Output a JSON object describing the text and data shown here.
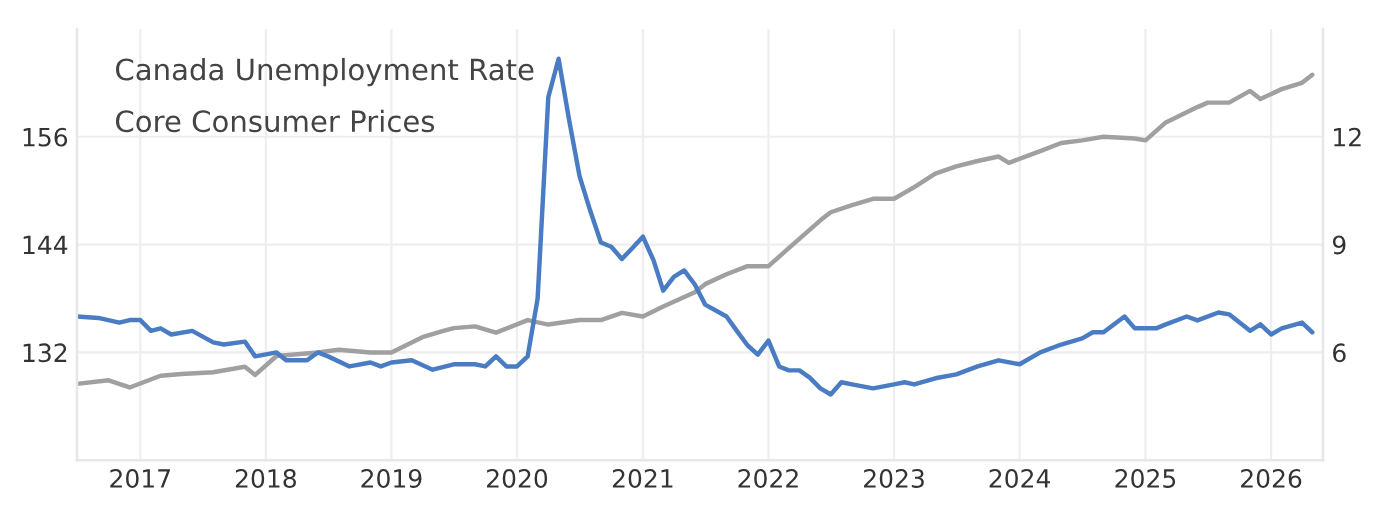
{
  "chart_data": {
    "type": "line",
    "annotations": [
      "Canada Unemployment Rate",
      "Core Consumer Prices"
    ],
    "xlim": [
      "2016-07",
      "2026-06"
    ],
    "xticks": [
      {
        "value": "2017",
        "label": "2017"
      },
      {
        "value": "2018",
        "label": "2018"
      },
      {
        "value": "2019",
        "label": "2019"
      },
      {
        "value": "2020",
        "label": "2020"
      },
      {
        "value": "2021",
        "label": "2021"
      },
      {
        "value": "2022",
        "label": "2022"
      },
      {
        "value": "2023",
        "label": "2023"
      },
      {
        "value": "2024",
        "label": "2024"
      },
      {
        "value": "2025",
        "label": "2025"
      },
      {
        "value": "2026",
        "label": "2026"
      }
    ],
    "ylim": [
      120,
      168
    ],
    "yticks": [
      132,
      144,
      156
    ],
    "y2lim": [
      3,
      15
    ],
    "y2ticks": [
      6,
      9,
      12
    ],
    "grid": true,
    "marker": "none",
    "line_style": "solid",
    "series": [
      {
        "color": "#a0a0a0",
        "x": [
          "2016-07",
          "2016-10",
          "2016-12",
          "2017-03",
          "2017-05",
          "2017-08",
          "2017-11",
          "2017-12",
          "2018-02",
          "2018-06",
          "2018-08",
          "2018-11",
          "2019-01",
          "2019-04",
          "2019-06",
          "2019-07",
          "2019-09",
          "2019-11",
          "2020-02",
          "2020-04",
          "2020-07",
          "2020-09",
          "2020-11",
          "2021-01",
          "2021-03",
          "2021-06",
          "2021-07",
          "2021-09",
          "2021-11",
          "2022-01",
          "2022-03",
          "2022-06",
          "2022-07",
          "2022-09",
          "2022-11",
          "2023-01",
          "2023-03",
          "2023-05",
          "2023-07",
          "2023-09",
          "2023-11",
          "2023-12",
          "2024-03",
          "2024-05",
          "2024-07",
          "2024-09",
          "2024-12",
          "2025-01",
          "2025-03",
          "2025-06",
          "2025-07",
          "2025-09",
          "2025-11",
          "2025-12",
          "2026-02",
          "2026-04",
          "2026-05"
        ],
        "values": [
          128.5,
          128.9,
          128.1,
          129.4,
          129.6,
          129.8,
          130.4,
          129.5,
          131.6,
          132.0,
          132.3,
          132.0,
          132.0,
          133.7,
          134.4,
          134.7,
          134.9,
          134.2,
          135.6,
          135.1,
          135.6,
          135.6,
          136.4,
          136.0,
          137.1,
          138.7,
          139.6,
          140.7,
          141.6,
          141.6,
          143.6,
          146.7,
          147.6,
          148.4,
          149.1,
          149.1,
          150.4,
          151.9,
          152.7,
          153.3,
          153.8,
          153.1,
          154.4,
          155.3,
          155.6,
          156.0,
          155.8,
          155.6,
          157.6,
          159.3,
          159.8,
          159.8,
          161.1,
          160.2,
          161.3,
          162.0,
          162.9
        ]
      },
      {
        "color": "#4a7cc4",
        "axis": "y2",
        "x": [
          "2016-07",
          "2016-09",
          "2016-11",
          "2016-12",
          "2017-01",
          "2017-02",
          "2017-03",
          "2017-04",
          "2017-06",
          "2017-08",
          "2017-09",
          "2017-11",
          "2017-12",
          "2018-02",
          "2018-03",
          "2018-05",
          "2018-06",
          "2018-07",
          "2018-09",
          "2018-11",
          "2018-12",
          "2019-01",
          "2019-03",
          "2019-05",
          "2019-07",
          "2019-09",
          "2019-10",
          "2019-11",
          "2019-12",
          "2020-01",
          "2020-02",
          "2020-03",
          "2020-04",
          "2020-05",
          "2020-06",
          "2020-07",
          "2020-08",
          "2020-09",
          "2020-10",
          "2020-11",
          "2020-12",
          "2021-01",
          "2021-02",
          "2021-03",
          "2021-04",
          "2021-05",
          "2021-06",
          "2021-07",
          "2021-09",
          "2021-10",
          "2021-11",
          "2021-12",
          "2022-01",
          "2022-02",
          "2022-03",
          "2022-04",
          "2022-05",
          "2022-06",
          "2022-07",
          "2022-08",
          "2022-09",
          "2022-11",
          "2023-01",
          "2023-02",
          "2023-03",
          "2023-05",
          "2023-07",
          "2023-09",
          "2023-11",
          "2024-01",
          "2024-03",
          "2024-05",
          "2024-07",
          "2024-08",
          "2024-09",
          "2024-11",
          "2024-12",
          "2025-02",
          "2025-03",
          "2025-05",
          "2025-06",
          "2025-08",
          "2025-09",
          "2025-11",
          "2025-12",
          "2026-01",
          "2026-02",
          "2026-04",
          "2026-05"
        ],
        "values": [
          7.0,
          6.96,
          6.83,
          6.9,
          6.9,
          6.6,
          6.67,
          6.5,
          6.6,
          6.28,
          6.22,
          6.3,
          5.89,
          6.0,
          5.78,
          5.78,
          6.0,
          5.89,
          5.61,
          5.72,
          5.61,
          5.72,
          5.78,
          5.52,
          5.67,
          5.67,
          5.61,
          5.89,
          5.61,
          5.61,
          5.89,
          7.5,
          13.1,
          14.17,
          12.44,
          10.9,
          9.94,
          9.06,
          8.94,
          8.6,
          8.9,
          9.22,
          8.56,
          7.72,
          8.1,
          8.28,
          7.89,
          7.33,
          7.0,
          6.6,
          6.2,
          5.94,
          6.33,
          5.61,
          5.5,
          5.5,
          5.3,
          5.0,
          4.83,
          5.17,
          5.11,
          5.0,
          5.11,
          5.17,
          5.11,
          5.28,
          5.39,
          5.61,
          5.78,
          5.67,
          6.0,
          6.22,
          6.39,
          6.56,
          6.56,
          7.0,
          6.67,
          6.67,
          6.78,
          7.0,
          6.89,
          7.11,
          7.06,
          6.6,
          6.78,
          6.5,
          6.67,
          6.83,
          6.56
        ]
      }
    ]
  }
}
